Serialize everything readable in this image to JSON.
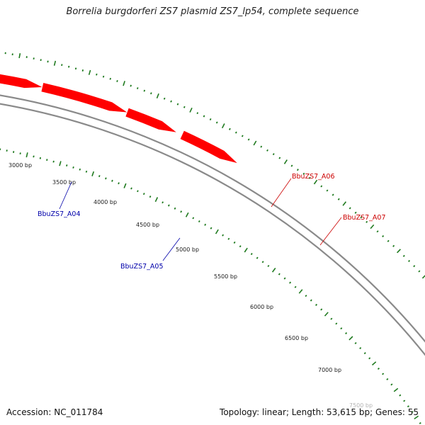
{
  "title": "Borrelia burgdorferi ZS7 plasmid ZS7_lp54, complete sequence",
  "accession": "Accession: NC_011784",
  "topology": "Topology: linear; Length: 53,615 bp; Genes: 55",
  "colors": {
    "backbone": "#8a8a8a",
    "ticks": "#1f7a1f",
    "forward_gene": "#ff0000",
    "reverse_gene": "#0000ff",
    "forward_label": "#cc0000",
    "reverse_label": "#0000aa"
  },
  "bp_labels": [
    "3000 bp",
    "3500 bp",
    "4000 bp",
    "4500 bp",
    "5000 bp",
    "5500 bp",
    "6000 bp",
    "6500 bp",
    "7000 bp",
    "7500 bp"
  ],
  "genes": [
    {
      "name": "BbuZS7_A04",
      "strand": "reverse"
    },
    {
      "name": "BbuZS7_A05",
      "strand": "reverse"
    },
    {
      "name": "BbuZS7_A06",
      "strand": "forward"
    },
    {
      "name": "BbuZS7_A07",
      "strand": "forward"
    }
  ]
}
